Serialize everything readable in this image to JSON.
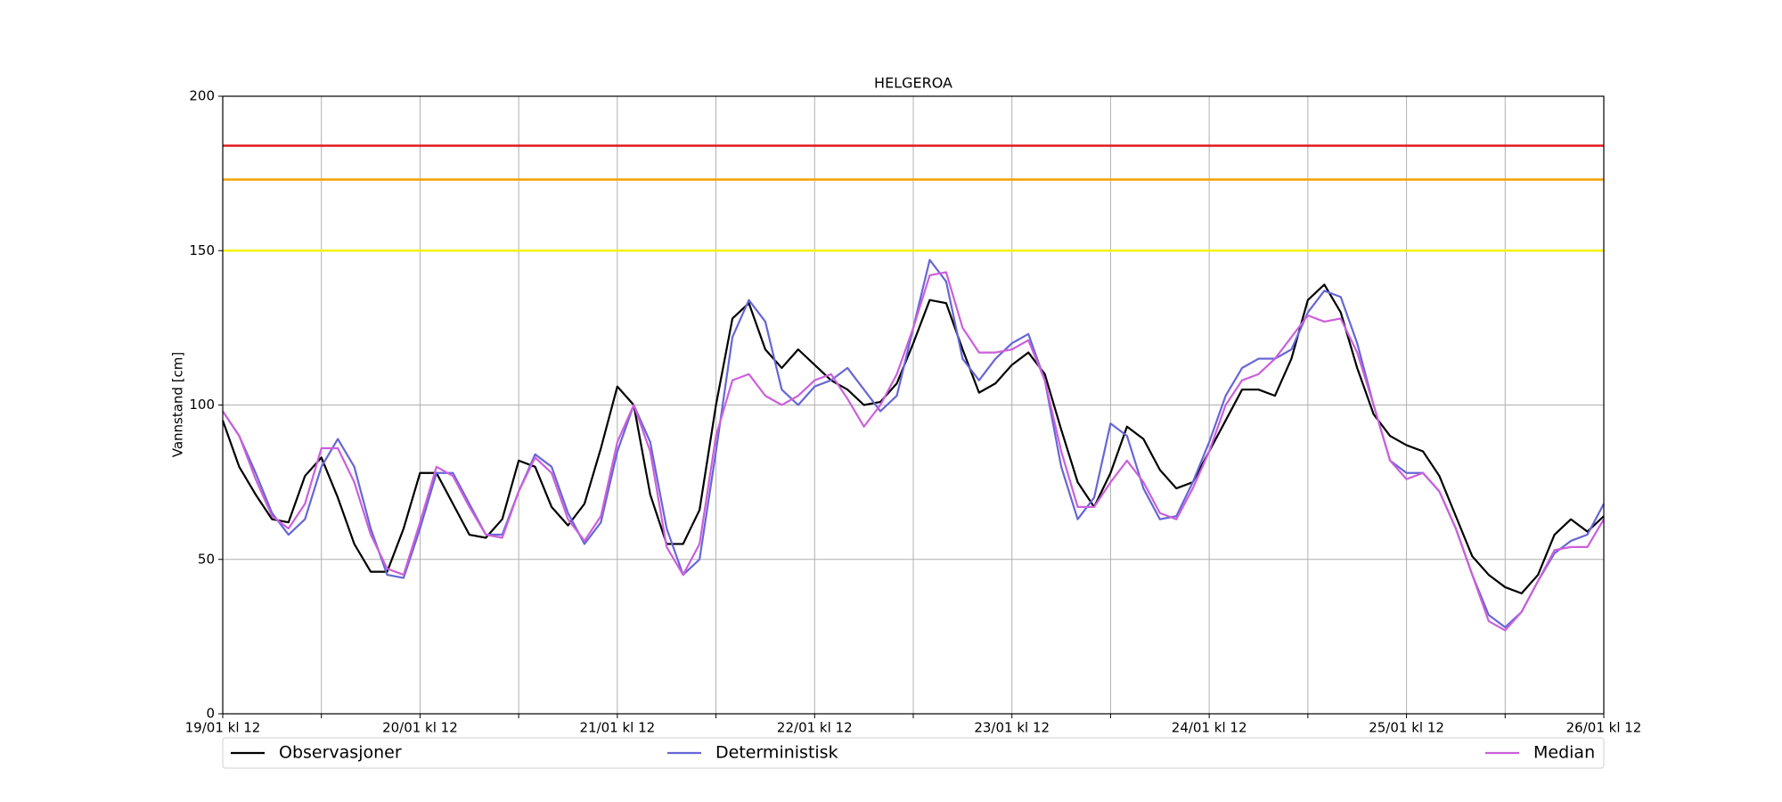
{
  "chart_data": {
    "type": "line",
    "title": "HELGEROA",
    "ylabel": "Vannstand [cm]",
    "x": [
      0,
      2,
      4,
      6,
      8,
      10,
      12,
      14,
      16,
      18,
      20,
      22,
      24,
      26,
      28,
      30,
      32,
      34,
      36,
      38,
      40,
      42,
      44,
      46,
      48,
      50,
      52,
      54,
      56,
      58,
      60,
      62,
      64,
      66,
      68,
      70,
      72,
      74,
      76,
      78,
      80,
      82,
      84,
      86,
      88,
      90,
      92,
      94,
      96,
      98,
      100,
      102,
      104,
      106,
      108,
      110,
      112,
      114,
      116,
      118,
      120,
      122,
      124,
      126,
      128,
      130,
      132,
      134,
      136,
      138,
      140,
      142,
      144,
      146,
      148,
      150,
      152,
      154,
      156,
      158,
      160,
      162,
      164,
      166,
      168
    ],
    "series": [
      {
        "name": "Observasjoner",
        "color": "#000000",
        "values": [
          95,
          80,
          71,
          63,
          62,
          77,
          83,
          70,
          55,
          46,
          46,
          60,
          78,
          78,
          68,
          58,
          57,
          63,
          82,
          80,
          67,
          61,
          68,
          86,
          106,
          100,
          71,
          55,
          55,
          66,
          100,
          128,
          133,
          118,
          112,
          118,
          113,
          108,
          105,
          100,
          101,
          107,
          120,
          134,
          133,
          118,
          104,
          107,
          113,
          117,
          110,
          92,
          75,
          67,
          78,
          93,
          89,
          79,
          73,
          75,
          85,
          95,
          105,
          105,
          103,
          115,
          134,
          139,
          130,
          112,
          97,
          90,
          87,
          85,
          77,
          64,
          51,
          45,
          41,
          39,
          45,
          58,
          63,
          59,
          64
        ]
      },
      {
        "name": "Deterministisk",
        "color": "#6666d6",
        "values": [
          98,
          90,
          78,
          65,
          58,
          63,
          80,
          89,
          80,
          60,
          45,
          44,
          60,
          78,
          78,
          68,
          58,
          58,
          72,
          84,
          80,
          65,
          55,
          62,
          85,
          100,
          88,
          60,
          45,
          50,
          85,
          122,
          134,
          127,
          105,
          100,
          106,
          108,
          112,
          105,
          98,
          103,
          125,
          147,
          140,
          115,
          108,
          115,
          120,
          123,
          108,
          80,
          63,
          70,
          94,
          90,
          73,
          63,
          64,
          75,
          88,
          103,
          112,
          115,
          115,
          118,
          130,
          137,
          135,
          120,
          100,
          82,
          78,
          78,
          72,
          60,
          45,
          32,
          28,
          33,
          43,
          52,
          56,
          58,
          68
        ]
      },
      {
        "name": "Median",
        "color": "#cc5fdc",
        "values": [
          98,
          90,
          76,
          64,
          60,
          68,
          86,
          86,
          75,
          58,
          47,
          45,
          62,
          80,
          77,
          67,
          58,
          57,
          72,
          83,
          78,
          63,
          56,
          64,
          88,
          100,
          85,
          54,
          45,
          55,
          90,
          108,
          110,
          103,
          100,
          103,
          108,
          110,
          102,
          93,
          100,
          110,
          125,
          142,
          143,
          125,
          117,
          117,
          118,
          121,
          108,
          85,
          67,
          67,
          75,
          82,
          75,
          65,
          63,
          73,
          85,
          100,
          108,
          110,
          115,
          122,
          129,
          127,
          128,
          117,
          100,
          82,
          76,
          78,
          72,
          60,
          45,
          30,
          27,
          33,
          43,
          53,
          54,
          54,
          63
        ]
      }
    ],
    "hlines": [
      {
        "value": 184,
        "color": "#e31a1c"
      },
      {
        "value": 173,
        "color": "#f5a000"
      },
      {
        "value": 150,
        "color": "#f2f200"
      }
    ],
    "xlim": [
      0,
      168
    ],
    "xticks": [
      {
        "value": 0,
        "label": "19/01 kl 12"
      },
      {
        "value": 24,
        "label": "20/01 kl 12"
      },
      {
        "value": 48,
        "label": "21/01 kl 12"
      },
      {
        "value": 72,
        "label": "22/01 kl 12"
      },
      {
        "value": 96,
        "label": "23/01 kl 12"
      },
      {
        "value": 120,
        "label": "24/01 kl 12"
      },
      {
        "value": 144,
        "label": "25/01 kl 12"
      },
      {
        "value": 168,
        "label": "26/01 kl 12"
      }
    ],
    "xminor": [
      12,
      36,
      60,
      84,
      108,
      132,
      156
    ],
    "ylim": [
      0,
      200
    ],
    "yticks": [
      0,
      50,
      100,
      150,
      200
    ],
    "grid": true,
    "legend": "bottom"
  }
}
